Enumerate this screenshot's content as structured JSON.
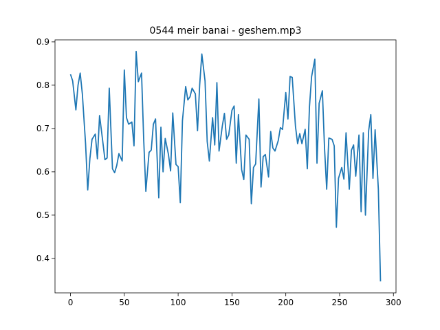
{
  "chart_data": {
    "type": "line",
    "title": "0544 meir banai - geshem.mp3",
    "x": [
      0,
      2,
      5,
      7,
      9,
      11,
      14,
      16,
      18,
      20,
      23,
      25,
      27,
      29,
      32,
      34,
      36,
      39,
      41,
      43,
      45,
      48,
      50,
      52,
      54,
      57,
      59,
      61,
      63,
      66,
      68,
      70,
      73,
      75,
      77,
      79,
      82,
      84,
      86,
      88,
      91,
      93,
      95,
      98,
      100,
      102,
      104,
      107,
      109,
      111,
      113,
      116,
      118,
      120,
      122,
      125,
      127,
      129,
      132,
      134,
      136,
      138,
      141,
      143,
      145,
      147,
      150,
      152,
      154,
      156,
      159,
      161,
      163,
      166,
      168,
      170,
      172,
      175,
      177,
      179,
      181,
      184,
      186,
      188,
      190,
      193,
      195,
      197,
      200,
      202,
      204,
      206,
      209,
      211,
      213,
      215,
      218,
      220,
      222,
      224,
      227,
      229,
      231,
      234,
      236,
      238,
      240,
      243,
      245,
      247,
      249,
      252,
      254,
      256,
      259,
      261,
      263,
      265,
      268,
      270,
      272,
      274,
      277,
      279,
      281,
      283,
      286,
      288
    ],
    "series": [
      {
        "color": "#1f77b4",
        "values": [
          0.825,
          0.81,
          0.743,
          0.8,
          0.828,
          0.78,
          0.665,
          0.558,
          0.63,
          0.675,
          0.687,
          0.63,
          0.73,
          0.69,
          0.628,
          0.632,
          0.793,
          0.607,
          0.598,
          0.615,
          0.642,
          0.625,
          0.835,
          0.725,
          0.71,
          0.715,
          0.66,
          0.878,
          0.808,
          0.828,
          0.675,
          0.555,
          0.645,
          0.65,
          0.71,
          0.722,
          0.54,
          0.703,
          0.6,
          0.677,
          0.64,
          0.602,
          0.736,
          0.617,
          0.612,
          0.529,
          0.718,
          0.797,
          0.766,
          0.773,
          0.793,
          0.78,
          0.695,
          0.8,
          0.872,
          0.81,
          0.67,
          0.625,
          0.725,
          0.662,
          0.806,
          0.648,
          0.705,
          0.735,
          0.675,
          0.685,
          0.742,
          0.752,
          0.62,
          0.732,
          0.605,
          0.582,
          0.685,
          0.675,
          0.526,
          0.61,
          0.618,
          0.768,
          0.565,
          0.635,
          0.64,
          0.588,
          0.693,
          0.655,
          0.648,
          0.672,
          0.702,
          0.698,
          0.783,
          0.722,
          0.82,
          0.818,
          0.705,
          0.665,
          0.688,
          0.665,
          0.698,
          0.607,
          0.75,
          0.82,
          0.86,
          0.62,
          0.758,
          0.787,
          0.655,
          0.56,
          0.678,
          0.675,
          0.66,
          0.472,
          0.585,
          0.61,
          0.583,
          0.69,
          0.56,
          0.65,
          0.662,
          0.59,
          0.685,
          0.508,
          0.69,
          0.5,
          0.695,
          0.732,
          0.585,
          0.697,
          0.56,
          0.347
        ]
      }
    ],
    "xlim": [
      -14.4,
      302.4
    ],
    "xticks": [
      0,
      50,
      100,
      150,
      200,
      250,
      300
    ],
    "ylim": [
      0.3205,
      0.9046
    ],
    "yticks": [
      0.4,
      0.5,
      0.6,
      0.7,
      0.8,
      0.9
    ]
  }
}
